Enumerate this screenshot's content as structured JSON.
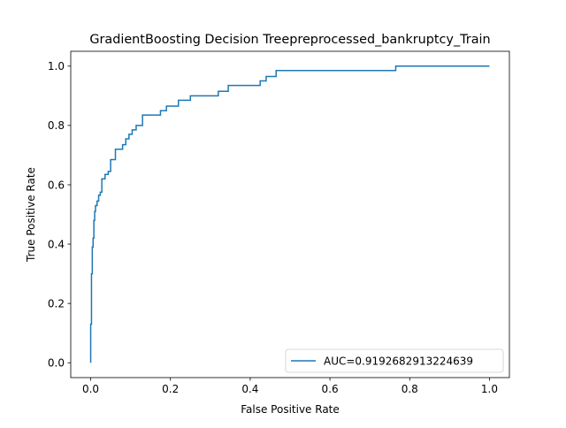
{
  "chart_data": {
    "type": "line",
    "title": "GradientBoosting Decision Treepreprocessed_bankruptcy_Train",
    "xlabel": "False Positive Rate",
    "ylabel": "True Positive Rate",
    "xlim": [
      -0.05,
      1.05
    ],
    "ylim": [
      -0.05,
      1.05
    ],
    "xticks": [
      0.0,
      0.2,
      0.4,
      0.6,
      0.8,
      1.0
    ],
    "xtick_labels": [
      "0.0",
      "0.2",
      "0.4",
      "0.6",
      "0.8",
      "1.0"
    ],
    "yticks": [
      0.0,
      0.2,
      0.4,
      0.6,
      0.8,
      1.0
    ],
    "ytick_labels": [
      "0.0",
      "0.2",
      "0.4",
      "0.6",
      "0.8",
      "1.0"
    ],
    "grid": false,
    "legend_position": "lower right",
    "series": [
      {
        "name": "AUC=0.9192682913224639",
        "color": "#1f77b4",
        "x": [
          0.0,
          0.0,
          0.002,
          0.002,
          0.004,
          0.004,
          0.006,
          0.006,
          0.008,
          0.008,
          0.01,
          0.01,
          0.012,
          0.012,
          0.016,
          0.016,
          0.02,
          0.02,
          0.024,
          0.024,
          0.028,
          0.028,
          0.036,
          0.036,
          0.044,
          0.044,
          0.05,
          0.05,
          0.062,
          0.062,
          0.08,
          0.08,
          0.088,
          0.088,
          0.096,
          0.096,
          0.104,
          0.104,
          0.114,
          0.114,
          0.13,
          0.13,
          0.175,
          0.175,
          0.19,
          0.19,
          0.22,
          0.22,
          0.25,
          0.25,
          0.32,
          0.32,
          0.345,
          0.345,
          0.425,
          0.425,
          0.44,
          0.44,
          0.465,
          0.465,
          0.765,
          0.765,
          1.0
        ],
        "y": [
          0.0,
          0.13,
          0.13,
          0.3,
          0.3,
          0.39,
          0.39,
          0.42,
          0.42,
          0.48,
          0.48,
          0.51,
          0.51,
          0.53,
          0.53,
          0.545,
          0.545,
          0.565,
          0.565,
          0.575,
          0.575,
          0.62,
          0.62,
          0.635,
          0.635,
          0.645,
          0.645,
          0.685,
          0.685,
          0.72,
          0.72,
          0.735,
          0.735,
          0.755,
          0.755,
          0.77,
          0.77,
          0.785,
          0.785,
          0.8,
          0.8,
          0.835,
          0.835,
          0.85,
          0.85,
          0.865,
          0.865,
          0.885,
          0.885,
          0.9,
          0.9,
          0.915,
          0.915,
          0.935,
          0.935,
          0.95,
          0.95,
          0.965,
          0.965,
          0.985,
          0.985,
          1.0,
          1.0
        ]
      }
    ]
  }
}
